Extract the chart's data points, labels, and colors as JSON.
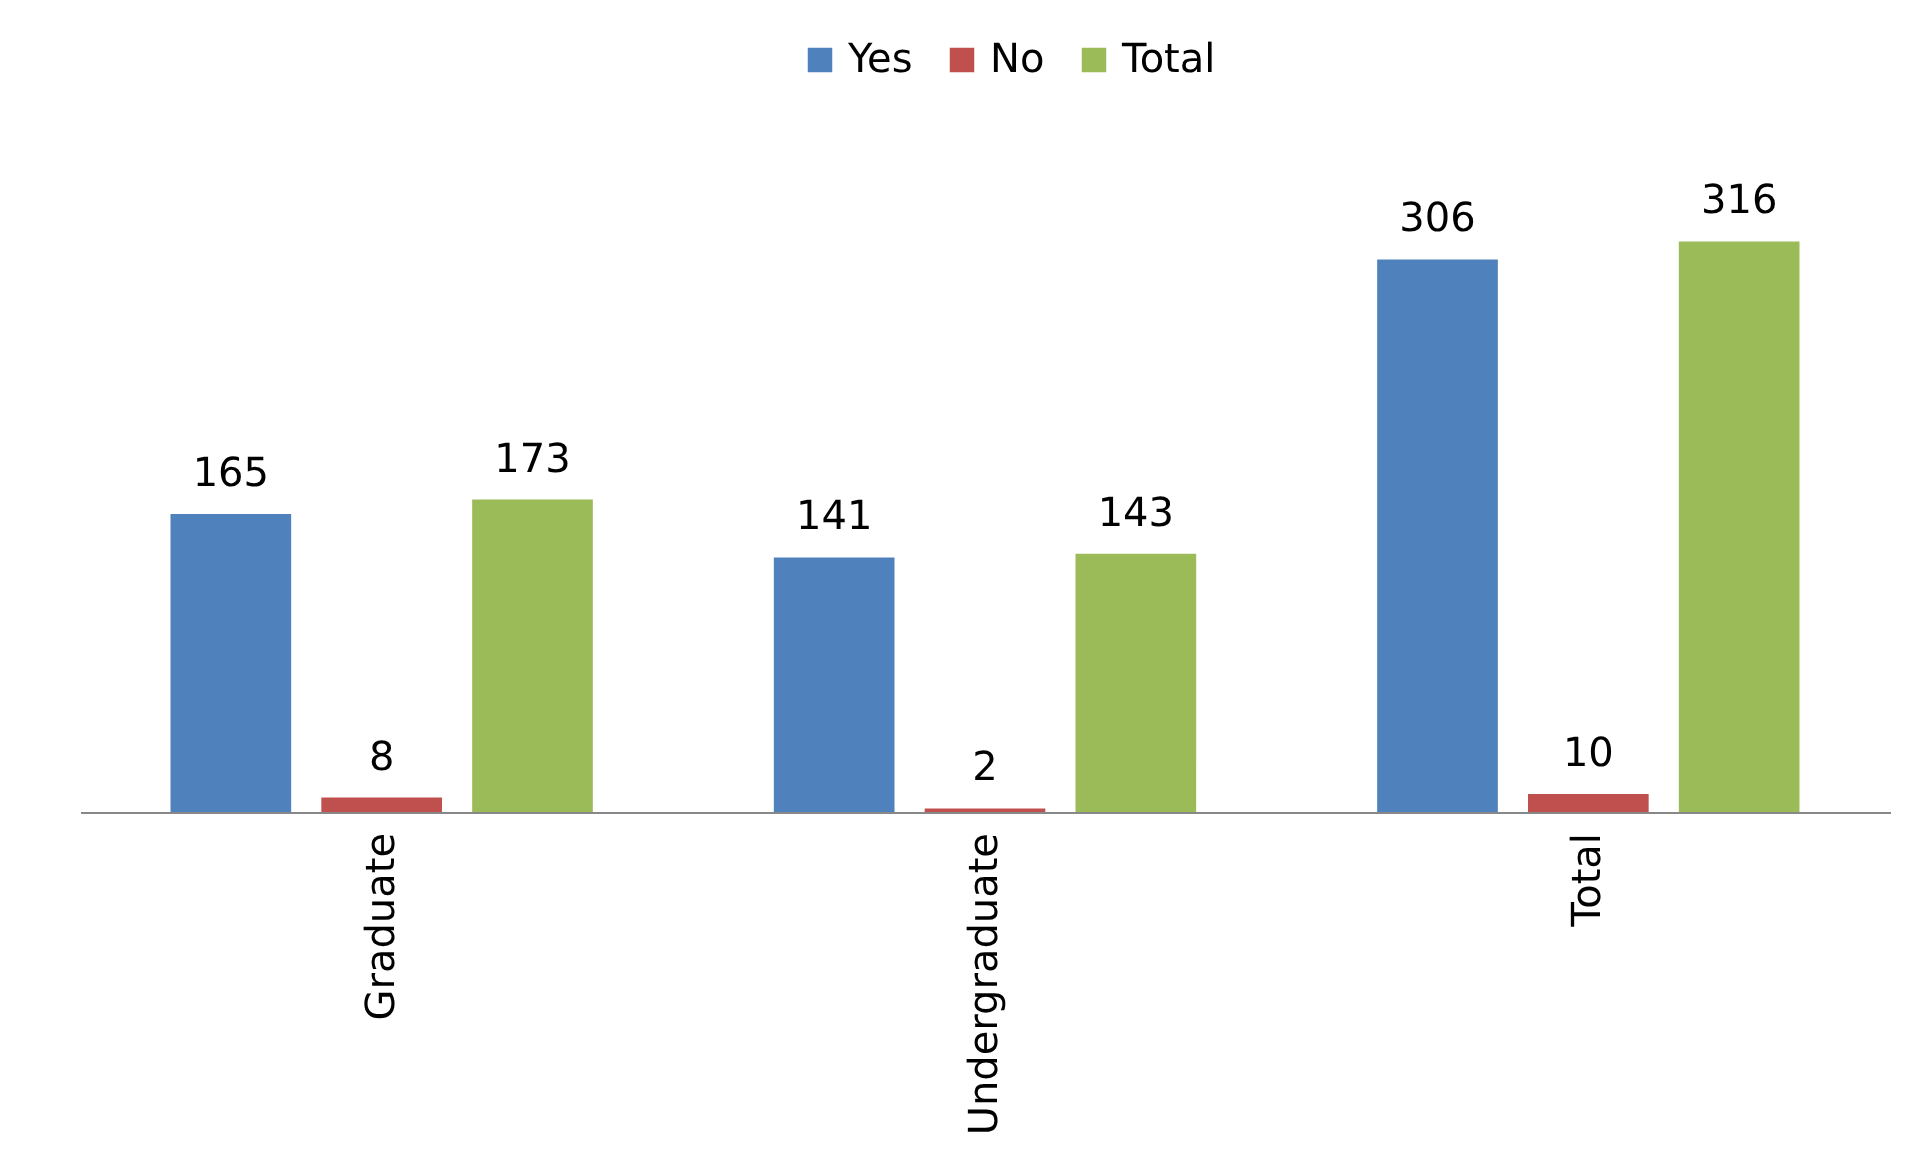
{
  "chart_data": {
    "type": "bar",
    "categories": [
      "Graduate",
      "Undergraduate",
      "Total"
    ],
    "series": [
      {
        "name": "Yes",
        "color": "#4f81bd",
        "values": [
          165,
          141,
          306
        ]
      },
      {
        "name": "No",
        "color": "#c0504d",
        "values": [
          8,
          2,
          10
        ]
      },
      {
        "name": "Total",
        "color": "#9bbb59",
        "values": [
          173,
          143,
          316
        ]
      }
    ],
    "data_labels": true,
    "legend": "top"
  }
}
